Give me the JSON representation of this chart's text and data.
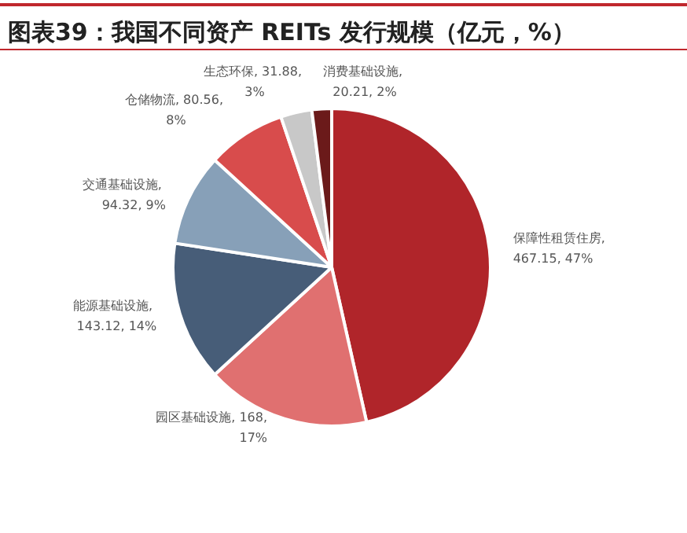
{
  "chart_data": {
    "type": "pie",
    "title": "图表39：我国不同资产 REITs 发行规模（亿元，%）",
    "categories": [
      "保障性租赁住房",
      "园区基础设施",
      "能源基础设施",
      "交通基础设施",
      "仓储物流",
      "生态环保",
      "消费基础设施"
    ],
    "values": [
      467.15,
      168,
      143.12,
      94.32,
      80.56,
      31.88,
      20.21
    ],
    "value_labels": [
      ", 467.15, 47%",
      ", 168, 17%",
      ", 143.12, 14%",
      ", 94.32, 9%",
      ", 80.56, 8%",
      ", 31.88, 3%",
      ", 20.21, 2%"
    ],
    "colors": [
      "#b0252a",
      "#e07070",
      "#475d78",
      "#87a0b8",
      "#d84c4c",
      "#c8c8c8",
      "#6b1a1a"
    ],
    "legend": false
  }
}
